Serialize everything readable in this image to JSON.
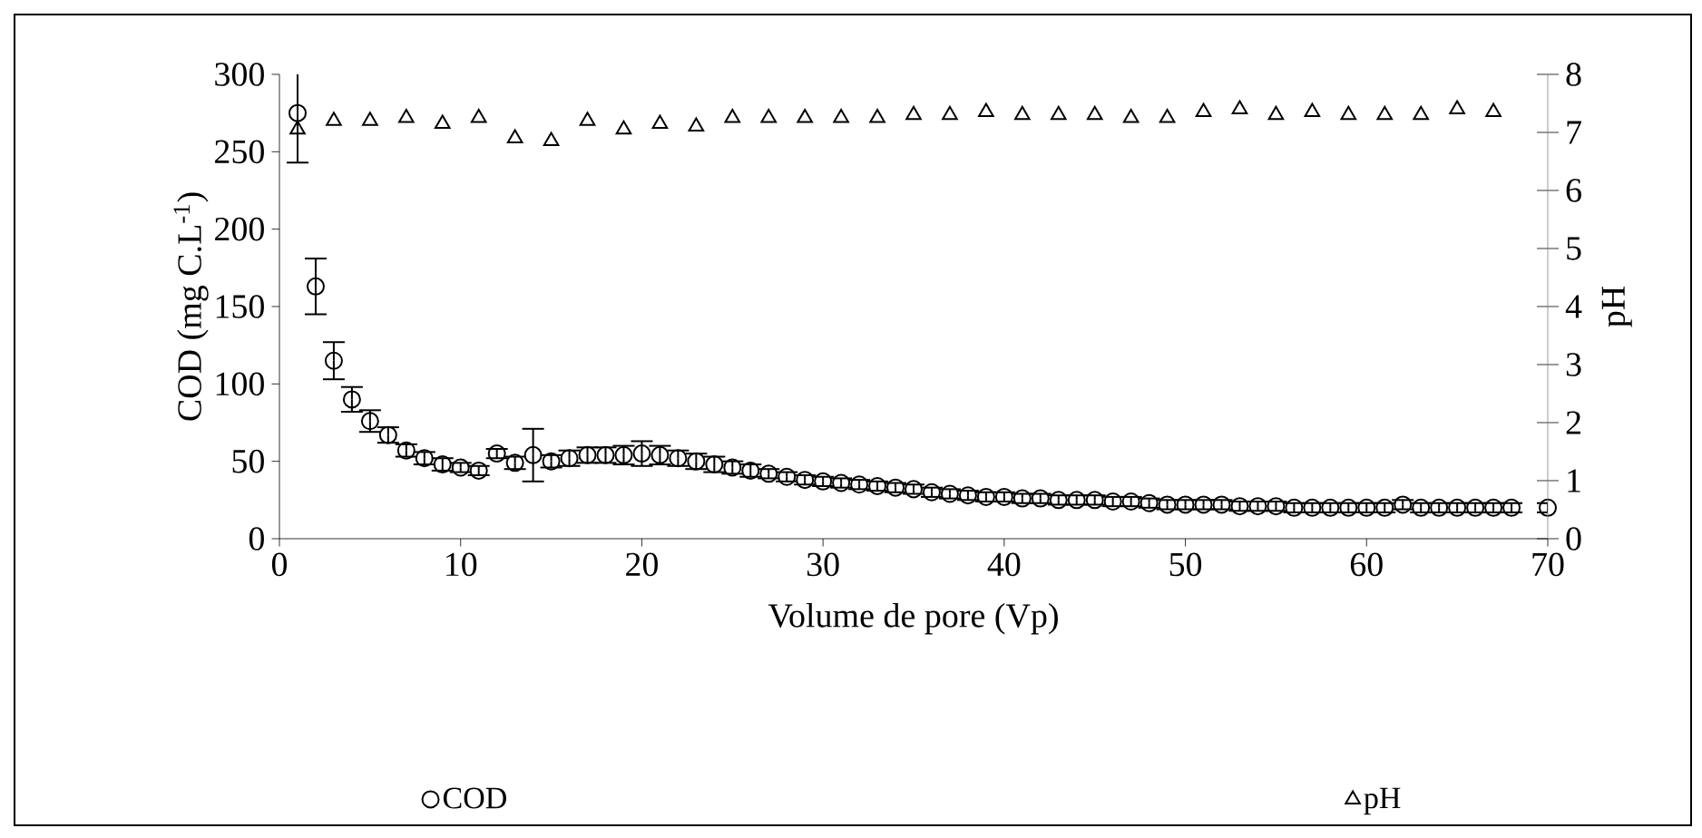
{
  "chart_data": {
    "type": "scatter",
    "xlabel": "Volume de pore (Vp)",
    "ylabel": "COD (mg C.L$^{-1}$)",
    "y2label": "pH",
    "xlim": [
      0,
      70
    ],
    "xticks": [
      0,
      10,
      20,
      30,
      40,
      50,
      60,
      70
    ],
    "ylim": [
      0,
      300
    ],
    "yticks": [
      0,
      50,
      100,
      150,
      200,
      250,
      300
    ],
    "y2lim": [
      0,
      8
    ],
    "y2ticks": [
      0,
      1,
      2,
      3,
      4,
      5,
      6,
      7,
      8
    ],
    "legend": "bottom",
    "grid": false,
    "series": [
      {
        "name": "COD",
        "color": "#000000",
        "marker": "circle",
        "x": [
          1,
          2,
          3,
          4,
          5,
          6,
          7,
          8,
          9,
          10,
          11,
          12,
          13,
          14,
          15,
          16,
          17,
          18,
          19,
          20,
          21,
          22,
          23,
          24,
          25,
          26,
          27,
          28,
          29,
          30,
          31,
          32,
          33,
          34,
          35,
          36,
          37,
          38,
          39,
          40,
          41,
          42,
          43,
          44,
          45,
          46,
          47,
          48,
          49,
          50,
          51,
          52,
          53,
          54,
          55,
          56,
          57,
          58,
          59,
          60,
          61,
          62,
          63,
          64,
          65,
          66,
          67,
          68,
          70
        ],
        "values": [
          275,
          163,
          115,
          90,
          76,
          67,
          57,
          52,
          48,
          46,
          44,
          55,
          49,
          54,
          50,
          52,
          54,
          54,
          54,
          55,
          54,
          52,
          50,
          48,
          46,
          44,
          42,
          40,
          38,
          37,
          36,
          35,
          34,
          33,
          32,
          30,
          29,
          28,
          27,
          27,
          26,
          26,
          25,
          25,
          25,
          24,
          24,
          23,
          22,
          22,
          22,
          22,
          21,
          21,
          21,
          20,
          20,
          20,
          20,
          20,
          20,
          22,
          20,
          20,
          20,
          20,
          20,
          20,
          20
        ],
        "errors": [
          32,
          18,
          12,
          8,
          7,
          5,
          4,
          4,
          4,
          3,
          3,
          3,
          4,
          17,
          4,
          5,
          5,
          5,
          6,
          8,
          6,
          5,
          5,
          5,
          4,
          4,
          3,
          3,
          3,
          3,
          3,
          3,
          3,
          3,
          3,
          3,
          3,
          3,
          3,
          3,
          3,
          3,
          3,
          3,
          3,
          3,
          3,
          3,
          3,
          3,
          3,
          3,
          3,
          3,
          3,
          3,
          3,
          3,
          3,
          3,
          3,
          3,
          3,
          3,
          3,
          3,
          3,
          3,
          3
        ]
      },
      {
        "name": "pH",
        "color": "#000000",
        "marker": "triangle",
        "axis": "y2",
        "x": [
          1,
          3,
          5,
          7,
          9,
          11,
          13,
          15,
          17,
          19,
          21,
          23,
          25,
          27,
          29,
          31,
          33,
          35,
          37,
          39,
          41,
          43,
          45,
          47,
          49,
          51,
          53,
          55,
          57,
          59,
          61,
          63,
          65,
          67
        ],
        "values": [
          7.05,
          7.2,
          7.2,
          7.25,
          7.15,
          7.25,
          6.9,
          6.85,
          7.2,
          7.05,
          7.15,
          7.1,
          7.25,
          7.25,
          7.25,
          7.25,
          7.25,
          7.3,
          7.3,
          7.35,
          7.3,
          7.3,
          7.3,
          7.25,
          7.25,
          7.35,
          7.4,
          7.3,
          7.35,
          7.3,
          7.3,
          7.3,
          7.4,
          7.35
        ]
      }
    ]
  }
}
